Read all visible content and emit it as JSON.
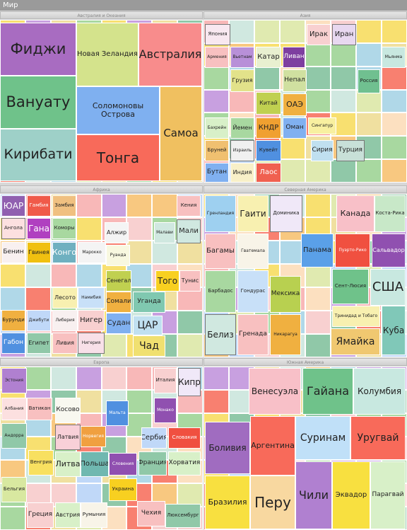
{
  "title": "Мир",
  "panels": [
    {
      "title": "Австралия и Океания",
      "cells": [
        "Фиджи",
        "Новая Зеландия",
        "Австралия",
        "Вануату",
        "Соломоновы Острова",
        "Самоа",
        "Кирибати",
        "Тонга"
      ]
    },
    {
      "title": "Азия",
      "cells": [
        "Япония",
        "Ирак",
        "Иран",
        "Армения",
        "Вьетнам",
        "Катар",
        "Ливан",
        "Мьянма",
        "Грузия",
        "Непал",
        "Россия",
        "Китай",
        "ОАЭ",
        "Бахрейн",
        "Йемен",
        "КНДР",
        "Оман",
        "Сингапур",
        "Бруней",
        "Израиль",
        "Кувейт",
        "Сирия",
        "Турция",
        "Бутан",
        "Индия",
        "Лаос"
      ]
    },
    {
      "title": "Африка",
      "cells": [
        "ЮАР",
        "Гамбия",
        "Замбия",
        "Кения",
        "Ангола",
        "Гана",
        "Коморы",
        "Алжир",
        "Малави",
        "Мали",
        "Бенин",
        "Гвинея",
        "Конго",
        "Марокко",
        "Руанда",
        "Лесото",
        "Намибия",
        "Сенегал",
        "Сомали",
        "Того",
        "Тунис",
        "Бурунди",
        "Джибути",
        "Либерия",
        "Нигер",
        "Судан",
        "Уганда",
        "ЦАР",
        "Габон",
        "Египет",
        "Ливия",
        "Нигерия",
        "Чад"
      ]
    },
    {
      "title": "Северная Америка",
      "cells": [
        "Гренландия",
        "Гаити",
        "Доминика",
        "Канада",
        "Коста-Рика",
        "Багамы",
        "Гватемала",
        "Панама",
        "Пуэрто-Рико",
        "Сальвадор",
        "Барбадос",
        "Гондурас",
        "Мексика",
        "Сент-Люсия",
        "США",
        "Белиз",
        "Гренада",
        "Никарагуа",
        "Тринидад и Тобаго",
        "Ямайка",
        "Куба"
      ]
    },
    {
      "title": "Европа",
      "cells": [
        "Эстония",
        "Италия",
        "Кипр",
        "Албания",
        "Ватикан",
        "Косово",
        "Мальта",
        "Монако",
        "Андорра",
        "Латвия",
        "Норвегия",
        "Сербия",
        "Словакия",
        "Венгрия",
        "Литва",
        "Польша",
        "Словения",
        "Франция",
        "Хорватия",
        "Бельгия",
        "Украина",
        "Греция",
        "Австрия",
        "Румыния",
        "Чехия",
        "Люксембург"
      ]
    },
    {
      "title": "Южная Америка",
      "cells": [
        "Венесуэла",
        "Гайана",
        "Колумбия",
        "Боливия",
        "Аргентина",
        "Суринам",
        "Уругвай",
        "Бразилия",
        "Перу",
        "Чили",
        "Эквадор",
        "Парагвай"
      ]
    }
  ]
}
